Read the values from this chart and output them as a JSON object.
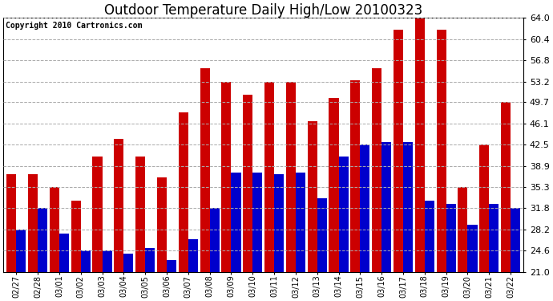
{
  "title": "Outdoor Temperature Daily High/Low 20100323",
  "copyright": "Copyright 2010 Cartronics.com",
  "dates": [
    "02/27",
    "02/28",
    "03/01",
    "03/02",
    "03/03",
    "03/04",
    "03/05",
    "03/06",
    "03/07",
    "03/08",
    "03/09",
    "03/10",
    "03/11",
    "03/12",
    "03/13",
    "03/14",
    "03/15",
    "03/16",
    "03/17",
    "03/18",
    "03/19",
    "03/20",
    "03/21",
    "03/22"
  ],
  "highs": [
    37.5,
    37.5,
    35.3,
    33.0,
    40.5,
    43.5,
    40.5,
    37.0,
    48.0,
    55.5,
    53.2,
    51.0,
    53.2,
    53.2,
    46.5,
    50.5,
    53.5,
    55.5,
    62.0,
    64.0,
    62.0,
    35.3,
    42.5,
    49.7
  ],
  "lows": [
    28.2,
    31.8,
    27.5,
    24.6,
    24.6,
    24.0,
    25.0,
    23.0,
    26.5,
    31.8,
    37.8,
    37.8,
    37.5,
    37.8,
    33.5,
    40.5,
    42.5,
    43.0,
    43.0,
    33.0,
    32.5,
    29.0,
    32.5,
    31.8
  ],
  "high_color": "#cc0000",
  "low_color": "#0000cc",
  "bg_color": "#ffffff",
  "grid_color": "#aaaaaa",
  "ymin": 21.0,
  "ymax": 64.0,
  "yticks": [
    21.0,
    24.6,
    28.2,
    31.8,
    35.3,
    38.9,
    42.5,
    46.1,
    49.7,
    53.2,
    56.8,
    60.4,
    64.0
  ],
  "title_fontsize": 12,
  "copyright_fontsize": 7,
  "tick_fontsize": 8,
  "xtick_fontsize": 7
}
